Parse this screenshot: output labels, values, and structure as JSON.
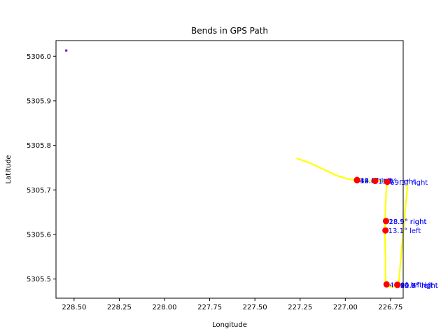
{
  "chart_data": {
    "type": "scatter",
    "title": "Bends in GPS Path",
    "xlabel": "Longitude",
    "ylabel": "Latitude",
    "xlim": [
      228.6,
      226.68
    ],
    "ylim": [
      5305.457,
      5306.035
    ],
    "x_ticks": [
      228.5,
      228.25,
      228.0,
      227.75,
      227.5,
      227.25,
      227.0,
      226.75
    ],
    "x_tick_labels": [
      "228.50",
      "228.25",
      "228.00",
      "227.75",
      "227.50",
      "227.25",
      "227.00",
      "226.75"
    ],
    "y_ticks": [
      5305.5,
      5305.6,
      5305.7,
      5305.8,
      5305.9,
      5306.0
    ],
    "y_tick_labels": [
      "5305.5",
      "5305.6",
      "5305.7",
      "5305.8",
      "5305.9",
      "5306.0"
    ],
    "grid": false,
    "path_color": "#ffff00",
    "point_color": "#ff0000",
    "annotation_color": "#0000ff",
    "outlier_color": "#6600cc",
    "path": [
      [
        227.27,
        5305.771
      ],
      [
        227.2,
        5305.761
      ],
      [
        227.12,
        5305.746
      ],
      [
        227.04,
        5305.731
      ],
      [
        226.98,
        5305.724
      ],
      [
        226.935,
        5305.722
      ],
      [
        226.86,
        5305.721
      ],
      [
        226.79,
        5305.72
      ],
      [
        226.77,
        5305.717
      ],
      [
        226.775,
        5305.69
      ],
      [
        226.778,
        5305.66
      ],
      [
        226.78,
        5305.63
      ],
      [
        226.782,
        5305.61
      ],
      [
        226.78,
        5305.58
      ],
      [
        226.778,
        5305.55
      ],
      [
        226.778,
        5305.52
      ],
      [
        226.778,
        5305.488
      ],
      [
        226.76,
        5305.483
      ],
      [
        226.73,
        5305.483
      ],
      [
        226.705,
        5305.488
      ],
      [
        226.69,
        5305.56
      ],
      [
        226.67,
        5305.65
      ],
      [
        226.655,
        5305.715
      ]
    ],
    "outlier": [
      228.545,
      5306.012
    ],
    "points": [
      {
        "x": 226.935,
        "y": 5305.722,
        "label": "44.5° left"
      },
      {
        "x": 226.935,
        "y": 5305.722,
        "label": "32.4° left"
      },
      {
        "x": 226.935,
        "y": 5305.722,
        "label": "18.1° left"
      },
      {
        "x": 226.935,
        "y": 5305.722,
        "label": "13.6° left"
      },
      {
        "x": 226.835,
        "y": 5305.72,
        "label": "13.5° right"
      },
      {
        "x": 226.768,
        "y": 5305.718,
        "label": "69.3° right"
      },
      {
        "x": 226.775,
        "y": 5305.63,
        "label": "28.9° right"
      },
      {
        "x": 226.775,
        "y": 5305.63,
        "label": "18.5° right"
      },
      {
        "x": 226.778,
        "y": 5305.609,
        "label": "13.1° left"
      },
      {
        "x": 226.772,
        "y": 5305.488,
        "label": "40.9° left"
      },
      {
        "x": 226.712,
        "y": 5305.487,
        "label": "22.3° left"
      },
      {
        "x": 226.712,
        "y": 5305.487,
        "label": "14.3° right"
      },
      {
        "x": 226.712,
        "y": 5305.487,
        "label": "60.6° right"
      }
    ]
  }
}
